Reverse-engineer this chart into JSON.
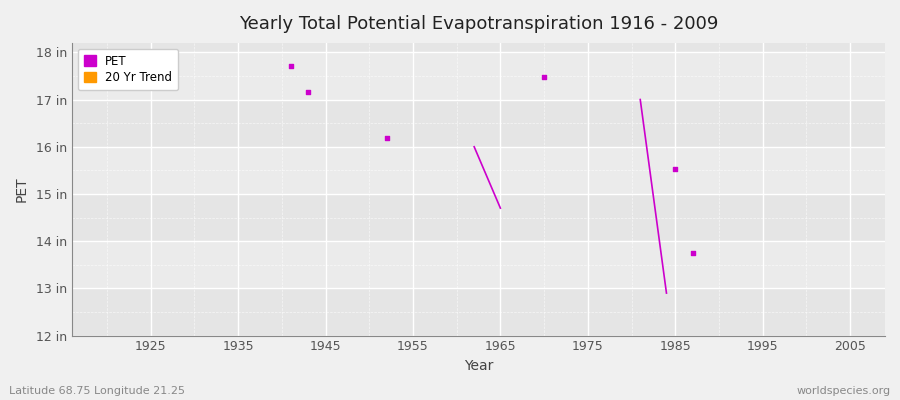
{
  "title": "Yearly Total Potential Evapotranspiration 1916 - 2009",
  "xlabel": "Year",
  "ylabel": "PET",
  "background_color": "#f0f0f0",
  "plot_bg_color": "#ebebeb",
  "band_color_light": "#e8e8e8",
  "band_color_dark": "#d8d8d8",
  "ylim": [
    12,
    18.2
  ],
  "xlim": [
    1916,
    2009
  ],
  "yticks": [
    12,
    13,
    14,
    15,
    16,
    17,
    18
  ],
  "ytick_labels": [
    "12 in",
    "13 in",
    "14 in",
    "15 in",
    "16 in",
    "17 in",
    "18 in"
  ],
  "xticks": [
    1925,
    1935,
    1945,
    1955,
    1965,
    1975,
    1985,
    1995,
    2005
  ],
  "pet_color": "#cc00cc",
  "trend_color": "#ff9900",
  "subtitle_left": "Latitude 68.75 Longitude 21.25",
  "subtitle_right": "worldspecies.org",
  "pet_points": [
    [
      1941,
      17.72
    ],
    [
      1943,
      17.15
    ],
    [
      1952,
      16.18
    ],
    [
      1970,
      17.47
    ],
    [
      1985,
      15.52
    ],
    [
      1987,
      13.75
    ]
  ],
  "trend_segments": [
    {
      "x": [
        1962,
        1965
      ],
      "y": [
        16.0,
        14.7
      ]
    },
    {
      "x": [
        1981,
        1984
      ],
      "y": [
        17.0,
        12.9
      ]
    }
  ],
  "band_ranges": [
    [
      12,
      13
    ],
    [
      13,
      14
    ],
    [
      14,
      15
    ],
    [
      15,
      16
    ],
    [
      16,
      17
    ],
    [
      17,
      18
    ],
    [
      18,
      18.2
    ]
  ],
  "band_colors": [
    "#e5e5e5",
    "#ebebeb",
    "#e5e5e5",
    "#ebebeb",
    "#e5e5e5",
    "#ebebeb",
    "#e5e5e5"
  ]
}
